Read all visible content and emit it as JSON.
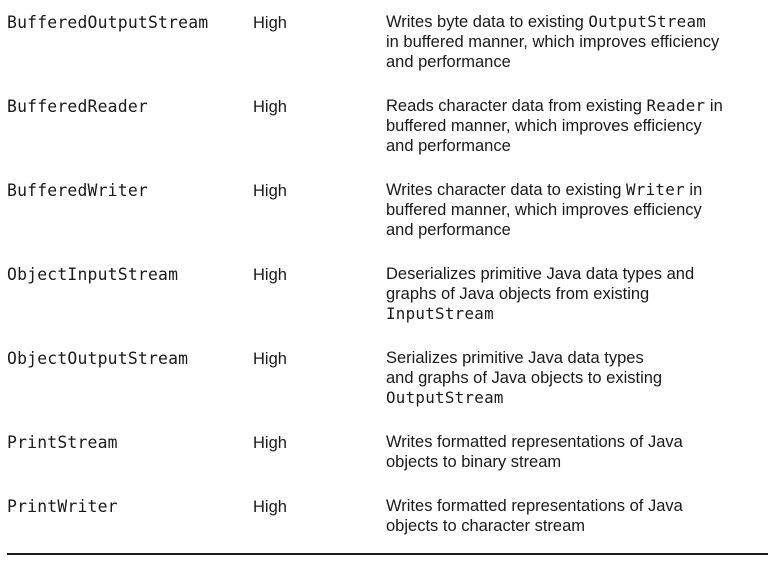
{
  "rows": [
    {
      "name": "BufferedOutputStream",
      "level": "High",
      "desc": {
        "l1_pre": "Writes byte data to existing ",
        "l1_code": "OutputStream",
        "l1_post": "",
        "l2": "in buffered manner, which improves efficiency",
        "l3_pre": "and performance",
        "l3_code": ""
      }
    },
    {
      "name": "BufferedReader",
      "level": "High",
      "desc": {
        "l1_pre": "Reads character data from existing ",
        "l1_code": "Reader",
        "l1_post": " in",
        "l2": "buffered manner, which improves efficiency",
        "l3_pre": "and performance",
        "l3_code": ""
      }
    },
    {
      "name": "BufferedWriter",
      "level": "High",
      "desc": {
        "l1_pre": "Writes character data to existing ",
        "l1_code": "Writer",
        "l1_post": " in",
        "l2": "buffered manner, which improves efficiency",
        "l3_pre": "and performance",
        "l3_code": ""
      }
    },
    {
      "name": "ObjectInputStream",
      "level": "High",
      "desc": {
        "l1_pre": "Deserializes primitive Java data types and",
        "l1_code": "",
        "l1_post": "",
        "l2": "graphs of Java objects from existing",
        "l3_pre": "",
        "l3_code": "InputStream"
      }
    },
    {
      "name": "ObjectOutputStream",
      "level": "High",
      "desc": {
        "l1_pre": "Serializes primitive Java data types",
        "l1_code": "",
        "l1_post": "",
        "l2": "and graphs of Java objects to existing",
        "l3_pre": "",
        "l3_code": "OutputStream"
      }
    },
    {
      "name": "PrintStream",
      "level": "High",
      "desc": {
        "l1_pre": "Writes formatted representations of Java",
        "l1_code": "",
        "l1_post": "",
        "l2": "objects to binary stream",
        "l3_pre": "",
        "l3_code": ""
      }
    },
    {
      "name": "PrintWriter",
      "level": "High",
      "desc": {
        "l1_pre": "Writes formatted representations of Java",
        "l1_code": "",
        "l1_post": "",
        "l2": "objects to character stream",
        "l3_pre": "",
        "l3_code": ""
      }
    }
  ]
}
